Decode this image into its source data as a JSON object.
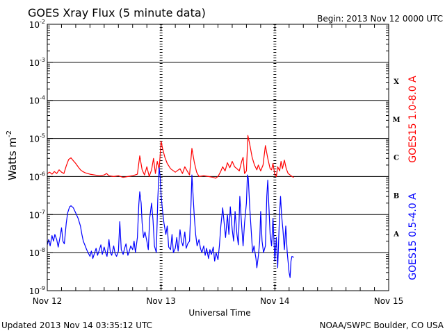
{
  "header": {
    "title": "GOES Xray Flux (5 minute data)",
    "begin_label": "Begin:  2013 Nov 12 0000 UTC"
  },
  "footer": {
    "updated": "Updated 2013 Nov 14 03:35:12 UTC",
    "source": "NOAA/SWPC Boulder, CO USA"
  },
  "colors": {
    "long_channel": "#ff0000",
    "short_channel": "#0000ff",
    "grid": "#000000"
  },
  "chart_data": {
    "type": "line",
    "title": "GOES Xray Flux (5 minute data)",
    "xlabel": "Universal Time",
    "ylabel_base": "Watts m",
    "ylabel_exp": "-2",
    "y_scale": "log",
    "ylim": [
      1e-09,
      0.01
    ],
    "xlim": [
      0,
      72
    ],
    "x_unit": "hours since 2013 Nov 12 0000 UTC",
    "grid": true,
    "x_tick_labels": [
      {
        "x": 0,
        "label": "Nov 12"
      },
      {
        "x": 24,
        "label": "Nov 13"
      },
      {
        "x": 48,
        "label": "Nov 14"
      },
      {
        "x": 72,
        "label": "Nov 15"
      }
    ],
    "y_ticks": [
      {
        "value": 1e-09,
        "base": "10",
        "exp": "-9"
      },
      {
        "value": 1e-08,
        "base": "10",
        "exp": "-8"
      },
      {
        "value": 1e-07,
        "base": "10",
        "exp": "-7"
      },
      {
        "value": 1e-06,
        "base": "10",
        "exp": "-6"
      },
      {
        "value": 1e-05,
        "base": "10",
        "exp": "-5"
      },
      {
        "value": 0.0001,
        "base": "10",
        "exp": "-4"
      },
      {
        "value": 0.001,
        "base": "10",
        "exp": "-3"
      },
      {
        "value": 0.01,
        "base": "10",
        "exp": "-2"
      }
    ],
    "flare_classes": [
      {
        "label": "X",
        "value": 0.00032
      },
      {
        "label": "M",
        "value": 3.2e-05
      },
      {
        "label": "C",
        "value": 3.2e-06
      },
      {
        "label": "B",
        "value": 3.2e-07
      },
      {
        "label": "A",
        "value": 3.2e-08
      }
    ],
    "series": [
      {
        "name": "GOES15 1.0-8.0 A",
        "color": "#ff0000",
        "points": [
          [
            0,
            1.2e-06
          ],
          [
            0.5,
            1.3e-06
          ],
          [
            1,
            1.15e-06
          ],
          [
            1.5,
            1.35e-06
          ],
          [
            2,
            1.2e-06
          ],
          [
            2.5,
            1.5e-06
          ],
          [
            3,
            1.3e-06
          ],
          [
            3.5,
            1.2e-06
          ],
          [
            4,
            1.9e-06
          ],
          [
            4.5,
            2.8e-06
          ],
          [
            5,
            3.1e-06
          ],
          [
            5.5,
            2.6e-06
          ],
          [
            6,
            2.2e-06
          ],
          [
            6.5,
            1.8e-06
          ],
          [
            7,
            1.5e-06
          ],
          [
            7.5,
            1.35e-06
          ],
          [
            8,
            1.25e-06
          ],
          [
            9,
            1.15e-06
          ],
          [
            10,
            1.1e-06
          ],
          [
            11,
            1.05e-06
          ],
          [
            12,
            1.1e-06
          ],
          [
            12.5,
            1.2e-06
          ],
          [
            13,
            1.05e-06
          ],
          [
            14,
            1e-06
          ],
          [
            15,
            1.05e-06
          ],
          [
            16,
            9.5e-07
          ],
          [
            17,
            1e-06
          ],
          [
            18,
            1.05e-06
          ],
          [
            19,
            1.15e-06
          ],
          [
            19.5,
            3.5e-06
          ],
          [
            20,
            1.5e-06
          ],
          [
            20.5,
            1.1e-06
          ],
          [
            21,
            1.8e-06
          ],
          [
            21.5,
            1e-06
          ],
          [
            22,
            1.5e-06
          ],
          [
            22.4,
            3e-06
          ],
          [
            22.8,
            1.2e-06
          ],
          [
            23.2,
            2.5e-06
          ],
          [
            23.6,
            1.5e-06
          ],
          [
            24,
            8.5e-06
          ],
          [
            24.3,
            5.5e-06
          ],
          [
            24.8,
            3.2e-06
          ],
          [
            25.3,
            2.2e-06
          ],
          [
            26,
            1.6e-06
          ],
          [
            27,
            1.3e-06
          ],
          [
            28,
            1.6e-06
          ],
          [
            28.5,
            1.2e-06
          ],
          [
            29,
            1.8e-06
          ],
          [
            29.5,
            1.4e-06
          ],
          [
            30,
            1.1e-06
          ],
          [
            30.5,
            5.5e-06
          ],
          [
            31,
            2.4e-06
          ],
          [
            31.5,
            1.3e-06
          ],
          [
            32,
            1e-06
          ],
          [
            33,
            1.05e-06
          ],
          [
            34,
            1e-06
          ],
          [
            35,
            9.5e-07
          ],
          [
            35.5,
            9e-07
          ],
          [
            36,
            1e-06
          ],
          [
            36.5,
            1.3e-06
          ],
          [
            37,
            1.8e-06
          ],
          [
            37.5,
            1.4e-06
          ],
          [
            38,
            2.3e-06
          ],
          [
            38.5,
            1.7e-06
          ],
          [
            39,
            2.5e-06
          ],
          [
            39.5,
            1.8e-06
          ],
          [
            40,
            1.6e-06
          ],
          [
            40.5,
            1.4e-06
          ],
          [
            41,
            2.5e-06
          ],
          [
            41.3,
            3.2e-06
          ],
          [
            41.6,
            1.2e-06
          ],
          [
            42,
            1.4e-06
          ],
          [
            42.3,
            1.2e-05
          ],
          [
            42.7,
            7e-06
          ],
          [
            43.2,
            3.2e-06
          ],
          [
            43.7,
            2e-06
          ],
          [
            44.2,
            1.5e-06
          ],
          [
            44.5,
            2e-06
          ],
          [
            45,
            1.4e-06
          ],
          [
            45.5,
            2e-06
          ],
          [
            46,
            6.5e-06
          ],
          [
            46.5,
            3e-06
          ],
          [
            47,
            1.6e-06
          ],
          [
            47.3,
            1.5e-06
          ],
          [
            47.6,
            2.2e-06
          ],
          [
            48,
            1.1e-06
          ],
          [
            48.3,
            1e-06
          ],
          [
            48.6,
            1.8e-06
          ],
          [
            49,
            1.4e-06
          ],
          [
            49.3,
            2.5e-06
          ],
          [
            49.6,
            1.6e-06
          ],
          [
            50,
            2.7e-06
          ],
          [
            50.4,
            1.6e-06
          ],
          [
            50.8,
            1.2e-06
          ],
          [
            51.2,
            1.1e-06
          ],
          [
            51.6,
            1e-06
          ],
          [
            52,
            9.5e-07
          ]
        ]
      },
      {
        "name": "GOES15 0.5-4.0 A",
        "color": "#0000ff",
        "points": [
          [
            0,
            1.6e-08
          ],
          [
            0.3,
            2.2e-08
          ],
          [
            0.6,
            1.5e-08
          ],
          [
            1,
            2.8e-08
          ],
          [
            1.3,
            2e-08
          ],
          [
            1.6,
            3e-08
          ],
          [
            2,
            2.2e-08
          ],
          [
            2.3,
            1.4e-08
          ],
          [
            2.7,
            2.6e-08
          ],
          [
            3,
            4.5e-08
          ],
          [
            3.3,
            2e-08
          ],
          [
            3.6,
            1.7e-08
          ],
          [
            4,
            6e-08
          ],
          [
            4.3,
            1.1e-07
          ],
          [
            4.7,
            1.6e-07
          ],
          [
            5,
            1.7e-07
          ],
          [
            5.5,
            1.5e-07
          ],
          [
            6,
            1.1e-07
          ],
          [
            6.5,
            8e-08
          ],
          [
            7,
            5e-08
          ],
          [
            7.3,
            3e-08
          ],
          [
            7.6,
            2e-08
          ],
          [
            8,
            1.5e-08
          ],
          [
            8.3,
            1.2e-08
          ],
          [
            8.6,
            1e-08
          ],
          [
            9,
            8e-09
          ],
          [
            9.3,
            1.1e-08
          ],
          [
            9.6,
            7e-09
          ],
          [
            10,
            1e-08
          ],
          [
            10.3,
            1.3e-08
          ],
          [
            10.6,
            8.5e-09
          ],
          [
            11,
            1.2e-08
          ],
          [
            11.3,
            1.6e-08
          ],
          [
            11.6,
            9e-09
          ],
          [
            12,
            1.4e-08
          ],
          [
            12.3,
            1e-08
          ],
          [
            12.6,
            8e-09
          ],
          [
            13,
            2.2e-08
          ],
          [
            13.3,
            1e-08
          ],
          [
            13.6,
            8.5e-09
          ],
          [
            14,
            1.5e-08
          ],
          [
            14.3,
            9.5e-09
          ],
          [
            14.6,
            8e-09
          ],
          [
            15,
            1.1e-08
          ],
          [
            15.3,
            6.5e-08
          ],
          [
            15.6,
            1.2e-08
          ],
          [
            16,
            9e-09
          ],
          [
            16.3,
            1.3e-08
          ],
          [
            16.6,
            1.7e-08
          ],
          [
            17,
            8.5e-09
          ],
          [
            17.3,
            1.1e-08
          ],
          [
            17.6,
            1.5e-08
          ],
          [
            18,
            1.2e-08
          ],
          [
            18.3,
            2e-08
          ],
          [
            18.6,
            1e-08
          ],
          [
            19,
            2.5e-08
          ],
          [
            19.3,
            1.8e-07
          ],
          [
            19.5,
            4e-07
          ],
          [
            19.8,
            2e-07
          ],
          [
            20,
            6e-08
          ],
          [
            20.3,
            2.5e-08
          ],
          [
            20.6,
            3.5e-08
          ],
          [
            21,
            2e-08
          ],
          [
            21.3,
            1.2e-08
          ],
          [
            21.6,
            8e-08
          ],
          [
            22,
            2e-07
          ],
          [
            22.3,
            7e-08
          ],
          [
            22.6,
            1.5e-08
          ],
          [
            23,
            1e-08
          ],
          [
            23.3,
            2.5e-07
          ],
          [
            23.6,
            1.7e-06
          ],
          [
            23.8,
            1e-06
          ],
          [
            24,
            3.2e-07
          ],
          [
            24.3,
            1.3e-07
          ],
          [
            24.6,
            6e-08
          ],
          [
            25,
            3e-08
          ],
          [
            25.3,
            5e-08
          ],
          [
            25.6,
            1.4e-08
          ],
          [
            26,
            1.2e-08
          ],
          [
            26.3,
            3e-08
          ],
          [
            26.6,
            1e-08
          ],
          [
            27,
            1.3e-08
          ],
          [
            27.3,
            2.5e-08
          ],
          [
            27.6,
            1.1e-08
          ],
          [
            28,
            4e-08
          ],
          [
            28.3,
            2e-08
          ],
          [
            28.6,
            1.5e-08
          ],
          [
            29,
            3.5e-08
          ],
          [
            29.3,
            1.3e-08
          ],
          [
            29.6,
            1.7e-08
          ],
          [
            30,
            2e-08
          ],
          [
            30.3,
            1.7e-07
          ],
          [
            30.5,
            1.1e-06
          ],
          [
            30.7,
            4e-07
          ],
          [
            31,
            9e-08
          ],
          [
            31.3,
            3e-08
          ],
          [
            31.6,
            1.5e-08
          ],
          [
            32,
            2.2e-08
          ],
          [
            32.3,
            1.3e-08
          ],
          [
            32.6,
            1e-08
          ],
          [
            33,
            1.5e-08
          ],
          [
            33.3,
            8.5e-09
          ],
          [
            33.6,
            1.3e-08
          ],
          [
            34,
            7e-09
          ],
          [
            34.3,
            1.2e-08
          ],
          [
            34.6,
            9e-09
          ],
          [
            35,
            1.4e-08
          ],
          [
            35.3,
            6e-09
          ],
          [
            35.6,
            1e-08
          ],
          [
            36,
            6.5e-09
          ],
          [
            36.3,
            1.5e-08
          ],
          [
            36.6,
            5e-08
          ],
          [
            37,
            1.5e-07
          ],
          [
            37.3,
            6e-08
          ],
          [
            37.6,
            2.5e-08
          ],
          [
            38,
            1e-07
          ],
          [
            38.3,
            3e-08
          ],
          [
            38.6,
            1.6e-07
          ],
          [
            39,
            4e-08
          ],
          [
            39.3,
            2e-08
          ],
          [
            39.6,
            1.2e-07
          ],
          [
            40,
            3e-08
          ],
          [
            40.3,
            1.6e-08
          ],
          [
            40.6,
            3e-07
          ],
          [
            41,
            5e-08
          ],
          [
            41.3,
            1.5e-08
          ],
          [
            41.6,
            6e-08
          ],
          [
            42,
            2e-07
          ],
          [
            42.2,
            1.1e-06
          ],
          [
            42.4,
            9e-07
          ],
          [
            42.7,
            1.5e-07
          ],
          [
            43,
            4e-08
          ],
          [
            43.3,
            1e-08
          ],
          [
            43.6,
            1.5e-08
          ],
          [
            44,
            7e-09
          ],
          [
            44.2,
            4e-09
          ],
          [
            44.5,
            8e-09
          ],
          [
            44.8,
            2e-08
          ],
          [
            45,
            1.2e-07
          ],
          [
            45.3,
            2e-08
          ],
          [
            45.6,
            1e-08
          ],
          [
            46,
            1.5e-08
          ],
          [
            46.3,
            3e-07
          ],
          [
            46.5,
            8e-07
          ],
          [
            46.7,
            2e-07
          ],
          [
            47,
            3e-08
          ],
          [
            47.3,
            1.5e-08
          ],
          [
            47.6,
            8e-08
          ],
          [
            48,
            6e-09
          ],
          [
            48.3,
            2.5e-08
          ],
          [
            48.6,
            4e-09
          ],
          [
            49,
            1.2e-07
          ],
          [
            49.2,
            3e-07
          ],
          [
            49.4,
            1e-07
          ],
          [
            49.7,
            4e-08
          ],
          [
            50,
            1.2e-08
          ],
          [
            50.3,
            5e-08
          ],
          [
            50.6,
            1e-08
          ],
          [
            51,
            3e-09
          ],
          [
            51.2,
            2.2e-09
          ],
          [
            51.4,
            6e-09
          ],
          [
            51.6,
            8e-09
          ],
          [
            52,
            7.5e-09
          ]
        ]
      }
    ]
  }
}
